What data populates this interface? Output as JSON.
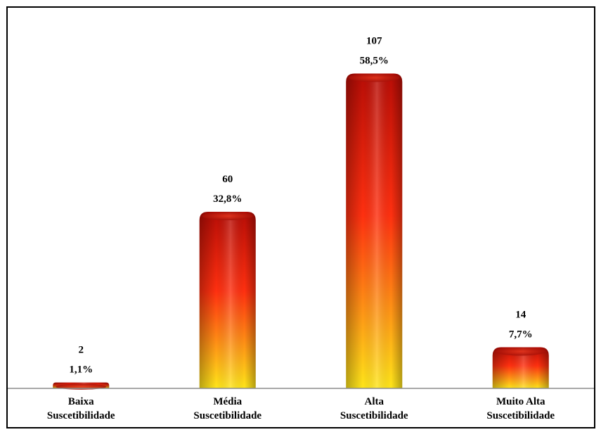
{
  "chart_data": {
    "type": "bar",
    "categories": [
      [
        "Baixa",
        "Suscetibilidade"
      ],
      [
        "Média",
        "Suscetibilidade"
      ],
      [
        "Alta",
        "Suscetibilidade"
      ],
      [
        "Muito Alta",
        "Suscetibilidade"
      ]
    ],
    "values": [
      2,
      60,
      107,
      14
    ],
    "percent_labels": [
      "1,1%",
      "32,8%",
      "58,5%",
      "7,7%"
    ],
    "title": "",
    "xlabel": "",
    "ylabel": "",
    "ylim": [
      0,
      115
    ],
    "grid": false,
    "legend": "none",
    "colors": {
      "top": "#b80d06",
      "middle": "#ff3010",
      "bottom": "#ffe61a",
      "cap": "#c91a0a",
      "axis": "#8c8c8c"
    }
  }
}
